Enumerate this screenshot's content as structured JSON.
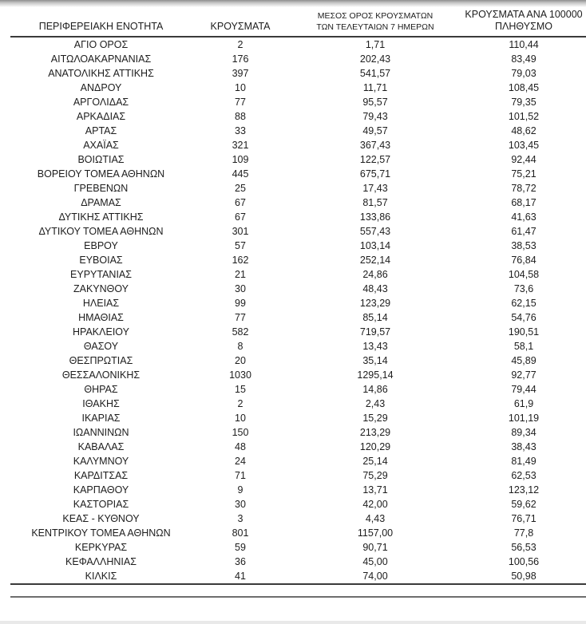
{
  "colors": {
    "text": "#1d1d1d",
    "table_rule": "#3a3a3a",
    "stray_rule": "#6e6e6e",
    "top_shadow": "#8f8f8f",
    "bottom_strip": "#e9e9e9"
  },
  "table": {
    "columns": [
      {
        "label": "ΠΕΡΙΦΕΡΕΙΑΚΗ ΕΝΟΤΗΤΑ"
      },
      {
        "label": "ΚΡΟΥΣΜΑΤΑ"
      },
      {
        "label": "ΜΕΣΟΣ ΟΡΟΣ ΚΡΟΥΣΜΑΤΩΝ ΤΩΝ ΤΕΛΕΥΤΑΙΩΝ 7 ΗΜΕΡΩΝ"
      },
      {
        "label": "ΚΡΟΥΣΜΑΤΑ ΑΝΑ 100000 ΠΛΗΘΥΣΜΟ"
      }
    ],
    "rows": [
      [
        "ΑΓΙΟ ΟΡΟΣ",
        "2",
        "1,71",
        "110,44"
      ],
      [
        "ΑΙΤΩΛΟΑΚΑΡΝΑΝΙΑΣ",
        "176",
        "202,43",
        "83,49"
      ],
      [
        "ΑΝΑΤΟΛΙΚΗΣ ΑΤΤΙΚΗΣ",
        "397",
        "541,57",
        "79,03"
      ],
      [
        "ΑΝΔΡΟΥ",
        "10",
        "11,71",
        "108,45"
      ],
      [
        "ΑΡΓΟΛΙΔΑΣ",
        "77",
        "95,57",
        "79,35"
      ],
      [
        "ΑΡΚΑΔΙΑΣ",
        "88",
        "79,43",
        "101,52"
      ],
      [
        "ΑΡΤΑΣ",
        "33",
        "49,57",
        "48,62"
      ],
      [
        "ΑΧΑΪΑΣ",
        "321",
        "367,43",
        "103,45"
      ],
      [
        "ΒΟΙΩΤΙΑΣ",
        "109",
        "122,57",
        "92,44"
      ],
      [
        "ΒΟΡΕΙΟΥ ΤΟΜΕΑ ΑΘΗΝΩΝ",
        "445",
        "675,71",
        "75,21"
      ],
      [
        "ΓΡΕΒΕΝΩΝ",
        "25",
        "17,43",
        "78,72"
      ],
      [
        "ΔΡΑΜΑΣ",
        "67",
        "81,57",
        "68,17"
      ],
      [
        "ΔΥΤΙΚΗΣ ΑΤΤΙΚΗΣ",
        "67",
        "133,86",
        "41,63"
      ],
      [
        "ΔΥΤΙΚΟΥ ΤΟΜΕΑ ΑΘΗΝΩΝ",
        "301",
        "557,43",
        "61,47"
      ],
      [
        "ΕΒΡΟΥ",
        "57",
        "103,14",
        "38,53"
      ],
      [
        "ΕΥΒΟΙΑΣ",
        "162",
        "252,14",
        "76,84"
      ],
      [
        "ΕΥΡΥΤΑΝΙΑΣ",
        "21",
        "24,86",
        "104,58"
      ],
      [
        "ΖΑΚΥΝΘΟΥ",
        "30",
        "48,43",
        "73,6"
      ],
      [
        "ΗΛΕΙΑΣ",
        "99",
        "123,29",
        "62,15"
      ],
      [
        "ΗΜΑΘΙΑΣ",
        "77",
        "85,14",
        "54,76"
      ],
      [
        "ΗΡΑΚΛΕΙΟΥ",
        "582",
        "719,57",
        "190,51"
      ],
      [
        "ΘΑΣΟΥ",
        "8",
        "13,43",
        "58,1"
      ],
      [
        "ΘΕΣΠΡΩΤΙΑΣ",
        "20",
        "35,14",
        "45,89"
      ],
      [
        "ΘΕΣΣΑΛΟΝΙΚΗΣ",
        "1030",
        "1295,14",
        "92,77"
      ],
      [
        "ΘΗΡΑΣ",
        "15",
        "14,86",
        "79,44"
      ],
      [
        "ΙΘΑΚΗΣ",
        "2",
        "2,43",
        "61,9"
      ],
      [
        "ΙΚΑΡΙΑΣ",
        "10",
        "15,29",
        "101,19"
      ],
      [
        "ΙΩΑΝΝΙΝΩΝ",
        "150",
        "213,29",
        "89,34"
      ],
      [
        "ΚΑΒΑΛΑΣ",
        "48",
        "120,29",
        "38,43"
      ],
      [
        "ΚΑΛΥΜΝΟΥ",
        "24",
        "25,14",
        "81,49"
      ],
      [
        "ΚΑΡΔΙΤΣΑΣ",
        "71",
        "75,29",
        "62,53"
      ],
      [
        "ΚΑΡΠΑΘΟΥ",
        "9",
        "13,71",
        "123,12"
      ],
      [
        "ΚΑΣΤΟΡΙΑΣ",
        "30",
        "42,00",
        "59,62"
      ],
      [
        "ΚΕΑΣ - ΚΥΘΝΟΥ",
        "3",
        "4,43",
        "76,71"
      ],
      [
        "ΚΕΝΤΡΙΚΟΥ ΤΟΜΕΑ ΑΘΗΝΩΝ",
        "801",
        "1157,00",
        "77,8"
      ],
      [
        "ΚΕΡΚΥΡΑΣ",
        "59",
        "90,71",
        "56,53"
      ],
      [
        "ΚΕΦΑΛΛΗΝΙΑΣ",
        "36",
        "45,00",
        "100,56"
      ],
      [
        "ΚΙΛΚΙΣ",
        "41",
        "74,00",
        "50,98"
      ]
    ]
  }
}
